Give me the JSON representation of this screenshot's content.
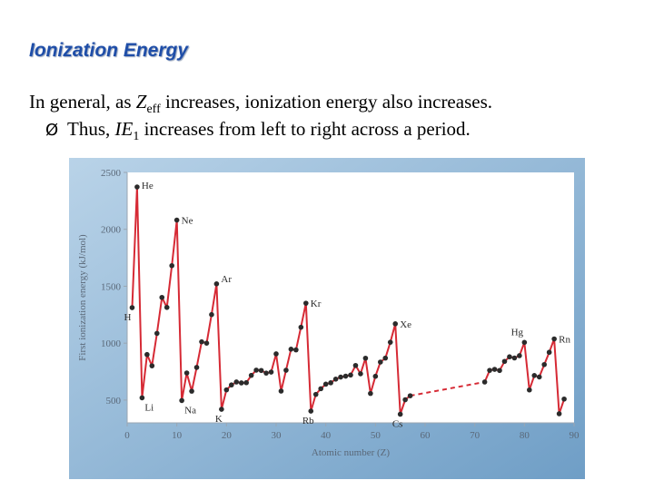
{
  "slide": {
    "title": "Ionization Energy",
    "line1_prefix": "In general, as ",
    "line1_var": "Z",
    "line1_sub": "eff",
    "line1_suffix": " increases, ionization energy also increases.",
    "bullet_glyph": "Ø",
    "line2_prefix": "Thus, ",
    "line2_var": "IE",
    "line2_sub": "1",
    "line2_suffix": " increases from left to right across a period."
  },
  "colors": {
    "series": "#d62a35",
    "point": "#2b2b2b",
    "axis_text": "#5a6878",
    "frame": "#8cb4d4",
    "plot_bg": "#ffffff"
  },
  "chart_data": {
    "type": "line",
    "xlabel": "Atomic number (Z)",
    "ylabel": "First ionization energy (kJ/mol)",
    "xlim": [
      0,
      90
    ],
    "ylim": [
      300,
      2500
    ],
    "xticks": [
      0,
      10,
      20,
      30,
      40,
      50,
      60,
      70,
      80,
      90
    ],
    "yticks": [
      500,
      1000,
      1500,
      2000,
      2500
    ],
    "grid": false,
    "series": [
      {
        "style": "solid",
        "points": [
          [
            1,
            1312
          ],
          [
            2,
            2372
          ],
          [
            3,
            520
          ],
          [
            4,
            900
          ],
          [
            5,
            801
          ],
          [
            6,
            1086
          ],
          [
            7,
            1402
          ],
          [
            8,
            1314
          ],
          [
            9,
            1681
          ],
          [
            10,
            2081
          ],
          [
            11,
            496
          ],
          [
            12,
            738
          ],
          [
            13,
            578
          ],
          [
            14,
            787
          ],
          [
            15,
            1012
          ],
          [
            16,
            1000
          ],
          [
            17,
            1251
          ],
          [
            18,
            1521
          ],
          [
            19,
            419
          ],
          [
            20,
            590
          ],
          [
            21,
            633
          ],
          [
            22,
            659
          ],
          [
            23,
            651
          ],
          [
            24,
            653
          ],
          [
            25,
            717
          ],
          [
            26,
            763
          ],
          [
            27,
            760
          ],
          [
            28,
            737
          ],
          [
            29,
            746
          ],
          [
            30,
            906
          ],
          [
            31,
            579
          ],
          [
            32,
            762
          ],
          [
            33,
            947
          ],
          [
            34,
            941
          ],
          [
            35,
            1140
          ],
          [
            36,
            1351
          ],
          [
            37,
            403
          ],
          [
            38,
            550
          ],
          [
            39,
            600
          ],
          [
            40,
            640
          ],
          [
            41,
            652
          ],
          [
            42,
            684
          ],
          [
            43,
            702
          ],
          [
            44,
            710
          ],
          [
            45,
            720
          ],
          [
            46,
            804
          ],
          [
            47,
            731
          ],
          [
            48,
            868
          ],
          [
            49,
            558
          ],
          [
            50,
            709
          ],
          [
            51,
            834
          ],
          [
            52,
            869
          ],
          [
            53,
            1008
          ],
          [
            54,
            1170
          ],
          [
            55,
            376
          ],
          [
            56,
            503
          ],
          [
            57,
            538
          ]
        ]
      },
      {
        "style": "dashed",
        "points": [
          [
            57,
            538
          ],
          [
            72,
            659
          ]
        ]
      },
      {
        "style": "solid",
        "points": [
          [
            72,
            659
          ],
          [
            73,
            761
          ],
          [
            74,
            770
          ],
          [
            75,
            760
          ],
          [
            76,
            840
          ],
          [
            77,
            880
          ],
          [
            78,
            870
          ],
          [
            79,
            890
          ],
          [
            80,
            1007
          ],
          [
            81,
            589
          ],
          [
            82,
            716
          ],
          [
            83,
            703
          ],
          [
            84,
            812
          ],
          [
            85,
            920
          ],
          [
            86,
            1037
          ],
          [
            87,
            380
          ],
          [
            88,
            509
          ]
        ]
      }
    ],
    "annotations": [
      {
        "label": "H",
        "x": 1,
        "y": 1312
      },
      {
        "label": "He",
        "x": 2,
        "y": 2372
      },
      {
        "label": "Li",
        "x": 3,
        "y": 520
      },
      {
        "label": "Ne",
        "x": 10,
        "y": 2081
      },
      {
        "label": "Na",
        "x": 11,
        "y": 496
      },
      {
        "label": "Ar",
        "x": 18,
        "y": 1521
      },
      {
        "label": "K",
        "x": 19,
        "y": 419
      },
      {
        "label": "Kr",
        "x": 36,
        "y": 1351
      },
      {
        "label": "Rb",
        "x": 37,
        "y": 403
      },
      {
        "label": "Xe",
        "x": 54,
        "y": 1170
      },
      {
        "label": "Cs",
        "x": 55,
        "y": 376
      },
      {
        "label": "Hg",
        "x": 80,
        "y": 1007
      },
      {
        "label": "Rn",
        "x": 86,
        "y": 1037
      }
    ]
  }
}
